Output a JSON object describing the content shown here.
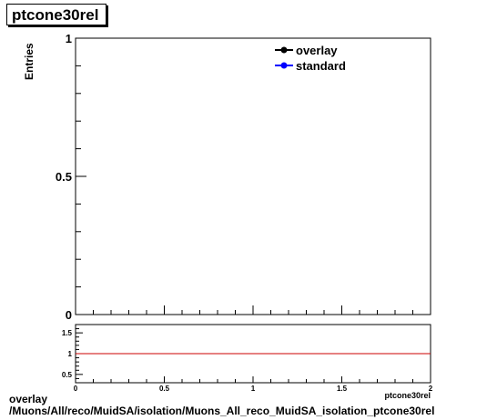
{
  "chart_data": [
    {
      "type": "line",
      "title": "ptcone30rel",
      "ylabel": "Entries",
      "ylim": [
        0,
        1
      ],
      "yticks": [
        "0",
        "0.5",
        "1"
      ],
      "legend_position": "top-right",
      "series": [
        {
          "name": "overlay",
          "color": "#000000",
          "marker": "filled-circle",
          "values": []
        },
        {
          "name": "standard",
          "color": "#0000ff",
          "marker": "filled-circle",
          "values": []
        }
      ]
    },
    {
      "type": "line",
      "xlabel": "ptcone30rel",
      "xlim": [
        0,
        2
      ],
      "ylim": [
        0.3,
        1.7
      ],
      "xticks": [
        "0",
        "0.5",
        "1",
        "1.5",
        "2"
      ],
      "yticks": [
        "0.5",
        "1",
        "1.5"
      ],
      "series": [
        {
          "name": "ratio",
          "color": "#cc0000",
          "x": [
            0,
            2
          ],
          "values": [
            1,
            1
          ]
        }
      ]
    }
  ],
  "footer": {
    "line1": "overlay",
    "line2": "/Muons/All/reco/MuidSA/isolation/Muons_All_reco_MuidSA_isolation_ptcone30rel"
  }
}
